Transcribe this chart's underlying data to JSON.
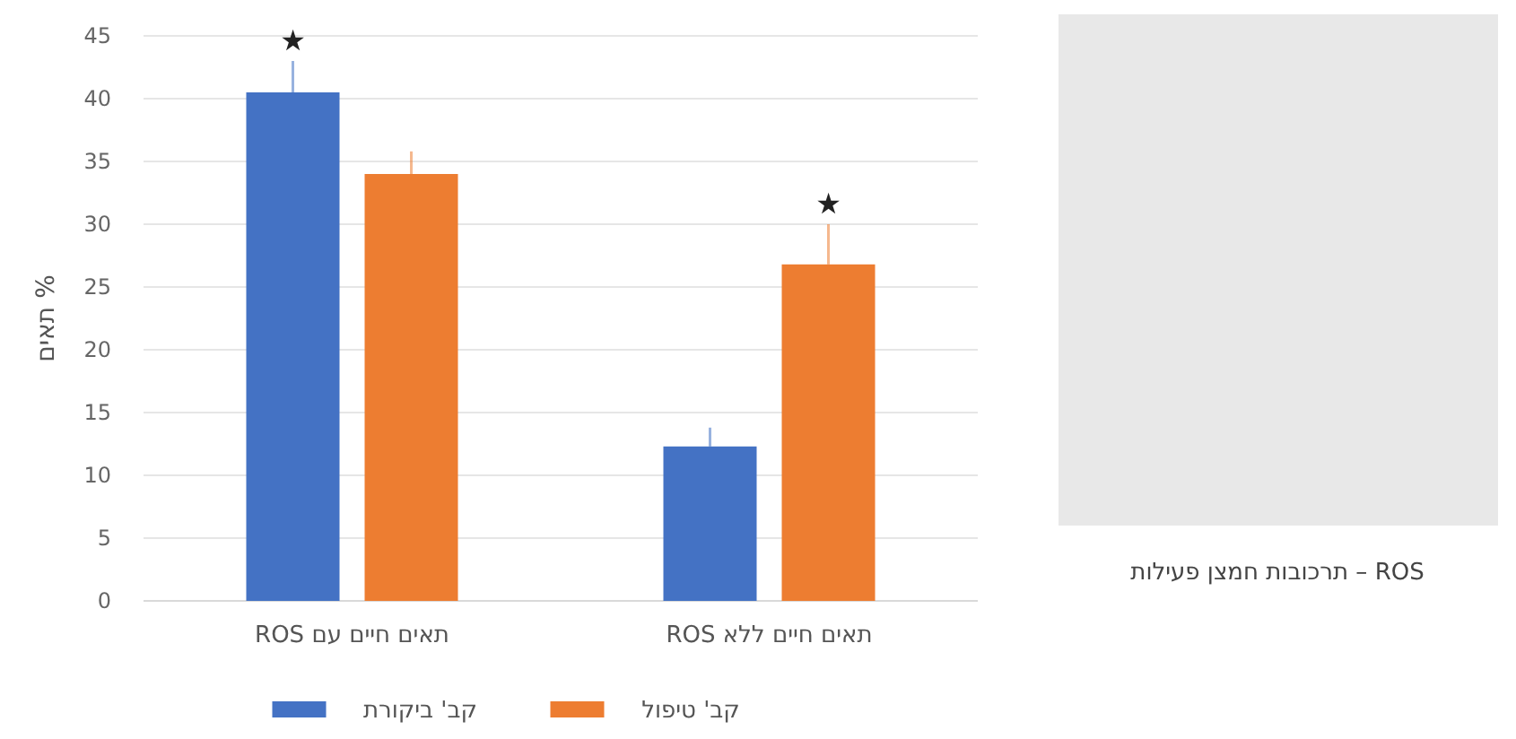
{
  "chart_data": {
    "type": "bar",
    "ylabel": "% תאים",
    "categories": [
      "תאים חיים עם ROS",
      "תאים חיים ללא ROS"
    ],
    "series": [
      {
        "name": "קב' ביקורת",
        "color": "#4472c4",
        "values": [
          40.5,
          12.3
        ],
        "errors": [
          2.5,
          1.5
        ]
      },
      {
        "name": "קב' טיפול",
        "color": "#ed7d31",
        "values": [
          34,
          26.8
        ],
        "errors": [
          1.8,
          3.2
        ]
      }
    ],
    "ylim": [
      0,
      45
    ],
    "yticks": [
      0,
      5,
      10,
      15,
      20,
      25,
      30,
      35,
      40,
      45
    ],
    "grid": "y",
    "legend": "bottom",
    "annotations": [
      "★",
      "★",
      "ROS – תרכובות חמצן פעילות"
    ]
  }
}
